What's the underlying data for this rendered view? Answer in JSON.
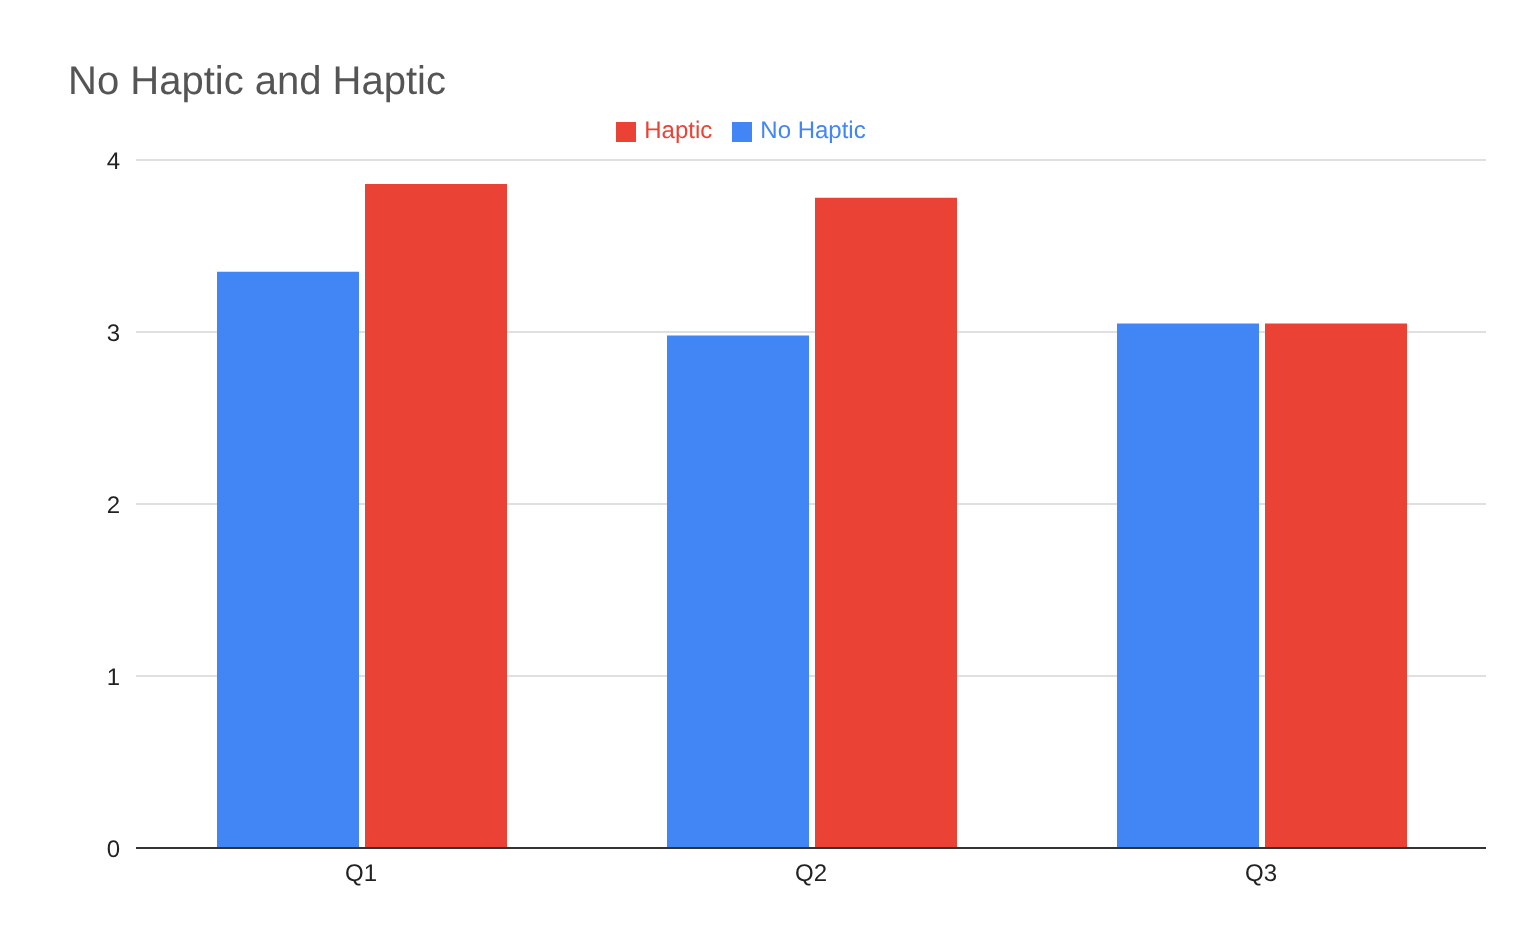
{
  "chart_data": {
    "type": "bar",
    "title": "No Haptic and Haptic",
    "categories": [
      "Q1",
      "Q2",
      "Q3"
    ],
    "series": [
      {
        "name": "No Haptic",
        "color": "#4285f4",
        "values": [
          3.35,
          2.98,
          3.05
        ]
      },
      {
        "name": "Haptic",
        "color": "#ea4335",
        "values": [
          3.86,
          3.78,
          3.05
        ]
      }
    ],
    "ylim": [
      0,
      4
    ],
    "yticks": [
      0,
      1,
      2,
      3,
      4
    ],
    "grid": "y",
    "legend": "top"
  }
}
